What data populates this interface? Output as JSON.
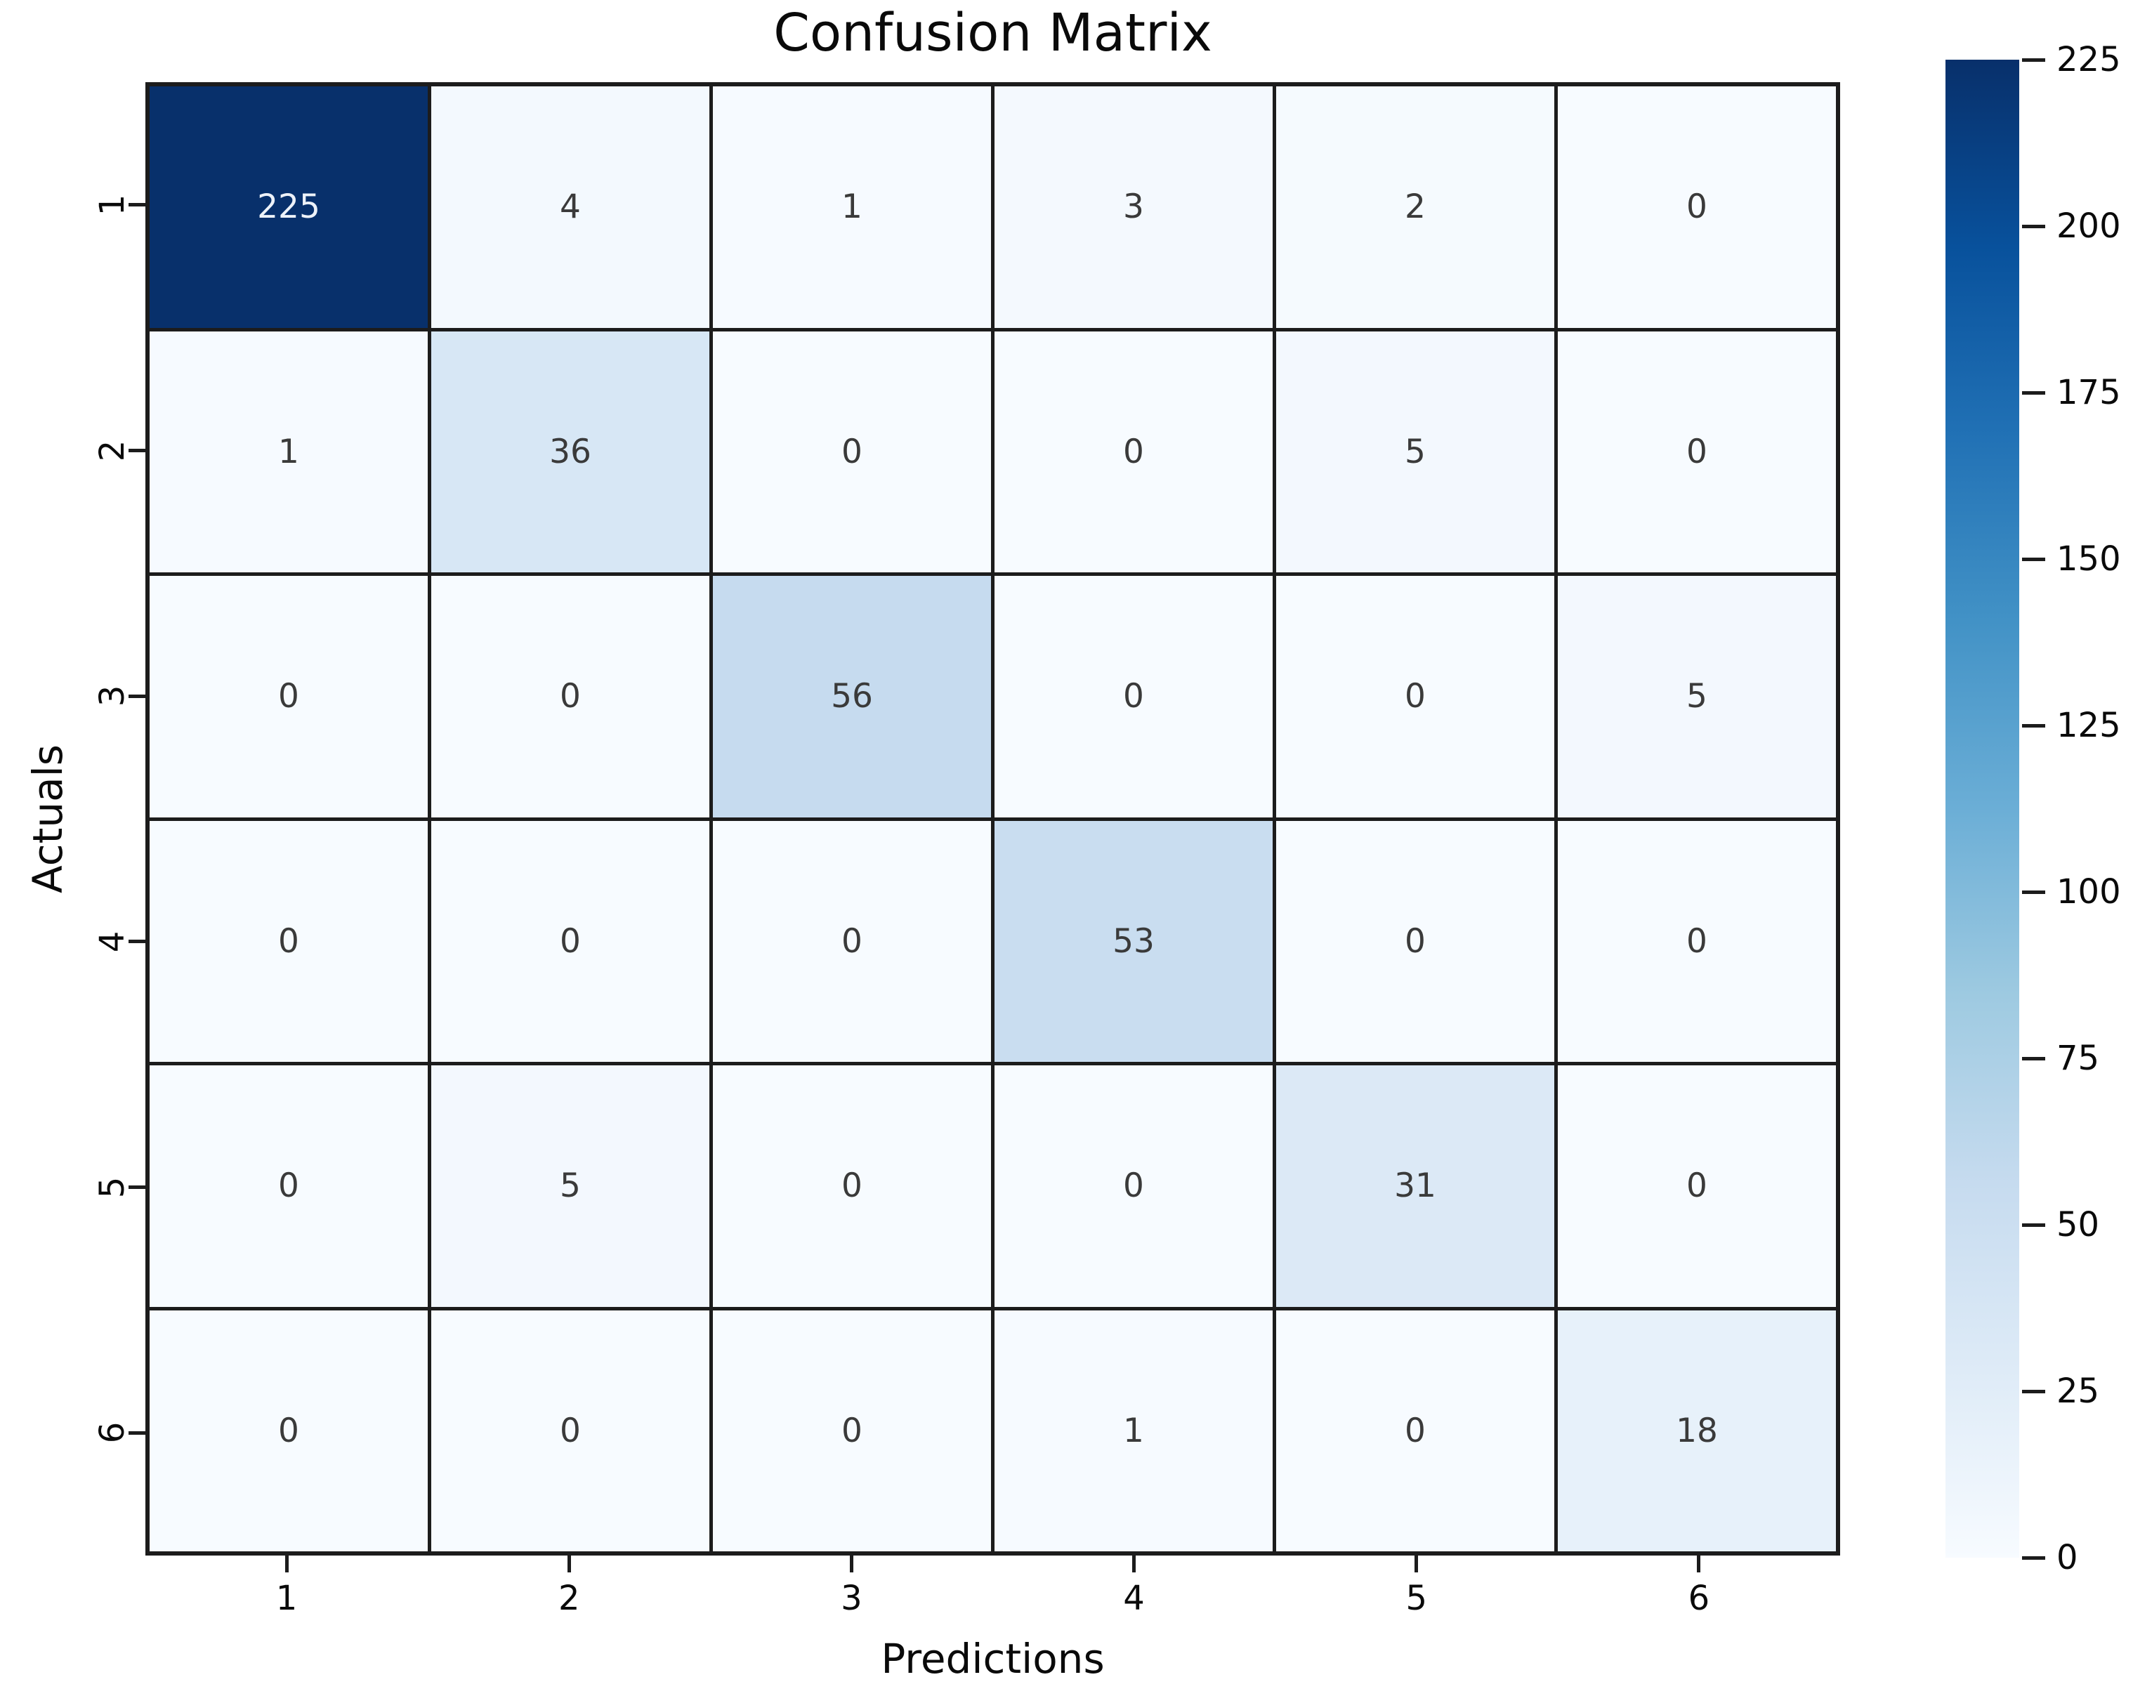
{
  "title": "Confusion Matrix",
  "chart_data": {
    "type": "heatmap",
    "title": "Confusion Matrix",
    "xlabel": "Predictions",
    "ylabel": "Actuals",
    "x_tick_labels": [
      "1",
      "2",
      "3",
      "4",
      "5",
      "6"
    ],
    "y_tick_labels": [
      "1",
      "2",
      "3",
      "4",
      "5",
      "6"
    ],
    "matrix": [
      [
        225,
        4,
        1,
        3,
        2,
        0
      ],
      [
        1,
        36,
        0,
        0,
        5,
        0
      ],
      [
        0,
        0,
        56,
        0,
        0,
        5
      ],
      [
        0,
        0,
        0,
        53,
        0,
        0
      ],
      [
        0,
        5,
        0,
        0,
        31,
        0
      ],
      [
        0,
        0,
        0,
        1,
        0,
        18
      ]
    ],
    "vmin": 0,
    "vmax": 225,
    "colormap": "Blues",
    "colormap_anchors": [
      "#f7fbff",
      "#deebf7",
      "#c6dbef",
      "#9ecae1",
      "#6baed6",
      "#4292c6",
      "#2171b5",
      "#08519c",
      "#08306b"
    ],
    "colorbar_ticks": [
      225,
      200,
      175,
      150,
      125,
      100,
      75,
      50,
      25,
      0
    ],
    "colorbar_position": "right",
    "grid_on": true,
    "grid_line_color": "#1c1c1c",
    "annot_text_dark": "#3a3a3a",
    "annot_text_light": "#edf2f9"
  }
}
